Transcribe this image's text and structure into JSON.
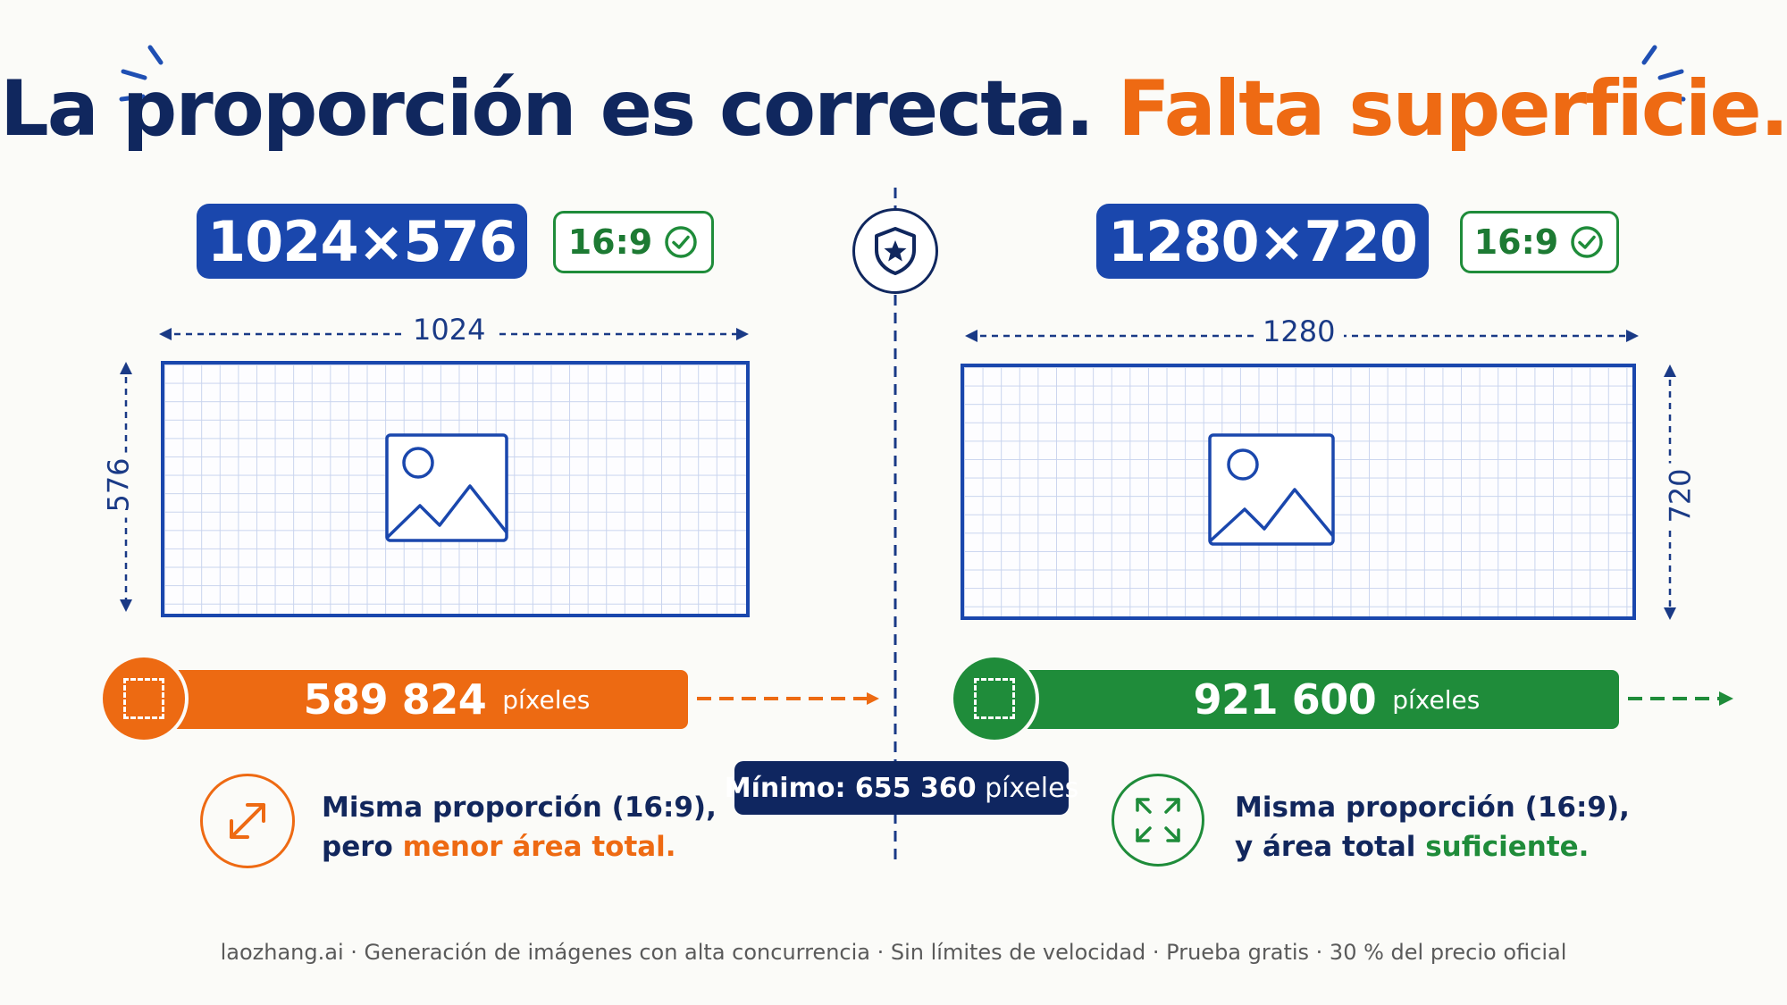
{
  "title": {
    "part1": "La proporción es correcta.",
    "part2": "Falta superficie."
  },
  "left": {
    "resolution": "1024×576",
    "ratio": "16:9",
    "width_label": "1024",
    "height_label": "576",
    "pixels": "589 824",
    "pixels_unit": "píxeles",
    "caption_line1": "Misma proporción (16:9),",
    "caption_line2_prefix": "pero",
    "caption_line2_highlight": "menor área total."
  },
  "right": {
    "resolution": "1280×720",
    "ratio": "16:9",
    "width_label": "1280",
    "height_label": "720",
    "pixels": "921 600",
    "pixels_unit": "píxeles",
    "caption_line1": "Misma proporción (16:9),",
    "caption_line2_prefix": "y área total",
    "caption_line2_highlight": "suficiente."
  },
  "minimum": {
    "label": "Mínimo: 655 360",
    "unit": "píxeles"
  },
  "footer": "laozhang.ai · Generación de imágenes con alta concurrencia · Sin límites de velocidad · Prueba gratis · 30 % del precio oficial",
  "colors": {
    "navy": "#10275e",
    "blue": "#1a47ad",
    "orange": "#ee6a13",
    "green": "#1f8c3a"
  },
  "icons": {
    "center": "shield-star-icon",
    "ratio_check": "check-circle-icon",
    "image_placeholder": "image-icon",
    "left_caption": "diagonal-arrows-icon",
    "right_caption": "expand-arrows-icon",
    "bar": "dashed-square-icon"
  }
}
